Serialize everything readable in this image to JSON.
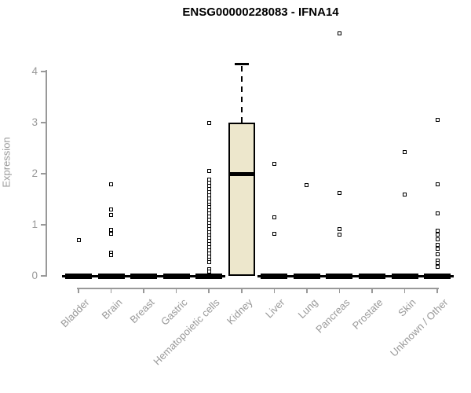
{
  "chart_data": {
    "type": "boxplot",
    "title": "ENSG00000228083 - IFNA14",
    "ylabel": "Expression",
    "ylim": [
      0,
      4.75
    ],
    "yticks": [
      0,
      1,
      2,
      3,
      4
    ],
    "grid": false,
    "legend": false,
    "colors": {
      "box_fill": "#EDE7CC",
      "box_stroke": "#000000",
      "axis": "#999999",
      "tick_text": "#999999",
      "title_text": "#000000"
    },
    "categories": [
      "Bladder",
      "Brain",
      "Breast",
      "Gastric",
      "Hematopoietic cells",
      "Kidney",
      "Liver",
      "Lung",
      "Pancreas",
      "Prostate",
      "Skin",
      "Unknown / Other"
    ],
    "boxes": [
      {
        "category": "Bladder",
        "whisker_low": 0,
        "q1": 0,
        "median": 0,
        "q3": 0,
        "whisker_high": 0,
        "outliers": [
          0.7
        ]
      },
      {
        "category": "Brain",
        "whisker_low": 0,
        "q1": 0,
        "median": 0,
        "q3": 0,
        "whisker_high": 0,
        "outliers": [
          1.8,
          1.3,
          1.2,
          0.9,
          0.83,
          0.45,
          0.41
        ]
      },
      {
        "category": "Breast",
        "whisker_low": 0,
        "q1": 0,
        "median": 0,
        "q3": 0,
        "whisker_high": 0,
        "outliers": []
      },
      {
        "category": "Gastric",
        "whisker_low": 0,
        "q1": 0,
        "median": 0,
        "q3": 0,
        "whisker_high": 0,
        "outliers": []
      },
      {
        "category": "Hematopoietic cells",
        "whisker_low": 0,
        "q1": 0,
        "median": 0,
        "q3": 0,
        "whisker_high": 0,
        "outliers": [
          3.0,
          2.05,
          1.88,
          1.82,
          1.76,
          1.7,
          1.64,
          1.58,
          1.52,
          1.46,
          1.4,
          1.34,
          1.28,
          1.22,
          1.16,
          1.1,
          1.04,
          0.98,
          0.92,
          0.86,
          0.8,
          0.74,
          0.68,
          0.62,
          0.56,
          0.5,
          0.44,
          0.38,
          0.32,
          0.27,
          0.13,
          0.08
        ]
      },
      {
        "category": "Kidney",
        "whisker_low": 0,
        "q1": 0,
        "median": 2.0,
        "q3": 3.0,
        "whisker_high": 4.15,
        "outliers": []
      },
      {
        "category": "Liver",
        "whisker_low": 0,
        "q1": 0,
        "median": 0,
        "q3": 0,
        "whisker_high": 0,
        "outliers": [
          2.2,
          1.15,
          0.82
        ]
      },
      {
        "category": "Lung",
        "whisker_low": 0,
        "q1": 0,
        "median": 0,
        "q3": 0,
        "whisker_high": 0,
        "outliers": [
          1.78
        ]
      },
      {
        "category": "Pancreas",
        "whisker_low": 0,
        "q1": 0,
        "median": 0,
        "q3": 0,
        "whisker_high": 0,
        "outliers": [
          4.75,
          1.62,
          0.92,
          0.81
        ]
      },
      {
        "category": "Prostate",
        "whisker_low": 0,
        "q1": 0,
        "median": 0,
        "q3": 0,
        "whisker_high": 0,
        "outliers": []
      },
      {
        "category": "Skin",
        "whisker_low": 0,
        "q1": 0,
        "median": 0,
        "q3": 0,
        "whisker_high": 0,
        "outliers": [
          2.42,
          1.6
        ]
      },
      {
        "category": "Unknown / Other",
        "whisker_low": 0,
        "q1": 0,
        "median": 0,
        "q3": 0,
        "whisker_high": 0,
        "outliers": [
          3.05,
          1.8,
          1.22,
          0.89,
          0.81,
          0.72,
          0.61,
          0.53,
          0.42,
          0.3,
          0.25,
          0.18
        ]
      }
    ]
  }
}
